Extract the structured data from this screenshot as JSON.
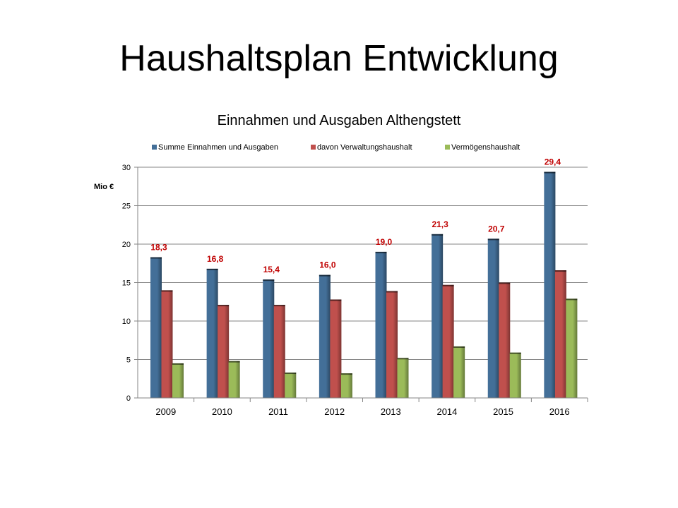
{
  "slide": {
    "title": "Haushaltsplan Entwicklung"
  },
  "chart_data": {
    "type": "bar",
    "title": "Einnahmen und Ausgaben Althengstett",
    "ylabel": "Mio €",
    "xlabel": "",
    "ylim": [
      0,
      30
    ],
    "yticks": [
      "0",
      "5",
      "10",
      "15",
      "20",
      "25",
      "30"
    ],
    "categories": [
      "2009",
      "2010",
      "2011",
      "2012",
      "2013",
      "2014",
      "2015",
      "2016"
    ],
    "legend_position": "top",
    "grid": true,
    "series": [
      {
        "name": "Summe Einnahmen und Ausgaben",
        "color": "#436f98",
        "values": [
          18.3,
          16.8,
          15.4,
          16.0,
          19.0,
          21.3,
          20.7,
          29.4
        ]
      },
      {
        "name": "davon Verwaltungshaushalt",
        "color": "#c0504d",
        "values": [
          14.0,
          12.1,
          12.1,
          12.8,
          13.9,
          14.7,
          15.0,
          16.6
        ]
      },
      {
        "name": "Vermögenshaushalt",
        "color": "#9bbb59",
        "values": [
          4.5,
          4.8,
          3.3,
          3.2,
          5.2,
          6.7,
          5.9,
          12.9
        ]
      }
    ],
    "data_labels": [
      "18,3",
      "16,8",
      "15,4",
      "16,0",
      "19,0",
      "21,3",
      "20,7",
      "29,4"
    ],
    "data_label_color": "#c00000"
  }
}
